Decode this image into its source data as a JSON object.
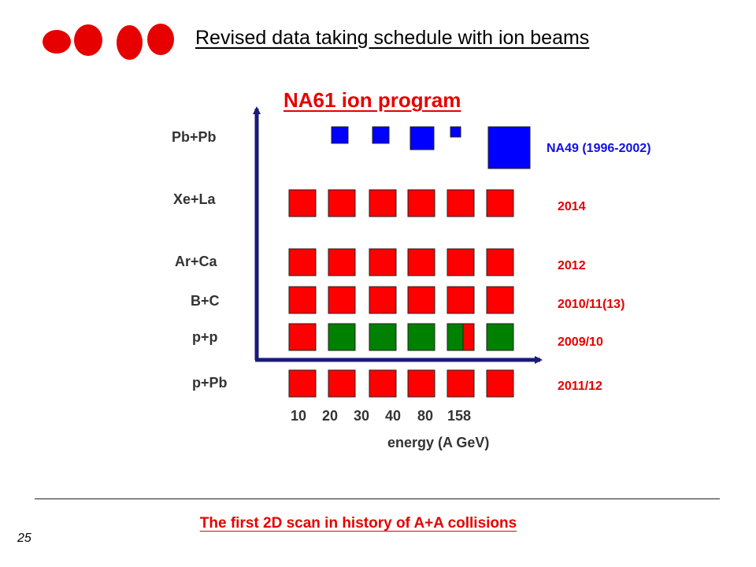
{
  "header": {
    "title": "Revised data taking schedule with ion beams"
  },
  "logo": {
    "name": "red-dots-logo",
    "color": "#e60000"
  },
  "diagram": {
    "title": "NA61 ion program",
    "x_axis": {
      "label": "energy (A GeV)",
      "ticks": [
        "10",
        "20",
        "30",
        "40",
        "80",
        "158"
      ]
    },
    "rows": [
      {
        "label": "Pb+Pb",
        "year": "NA49 (1996-2002)",
        "year_color": "#1010e0"
      },
      {
        "label": "Xe+La",
        "year": "2014",
        "year_color": "#e60000"
      },
      {
        "label": "Ar+Ca",
        "year": "2012",
        "year_color": "#e60000"
      },
      {
        "label": "B+C",
        "year": "2010/11(13)",
        "year_color": "#e60000"
      },
      {
        "label": "p+p",
        "year": "2009/10",
        "year_color": "#e60000"
      },
      {
        "label": "p+Pb",
        "year": "2011/12",
        "year_color": "#e60000"
      }
    ],
    "colors": {
      "red": "#ff0000",
      "green": "#008000",
      "blue": "#0000ff",
      "axis": "#1a1a7a"
    }
  },
  "footer": {
    "text": "The first 2D scan in history of A+A collisions",
    "page_number": "25"
  }
}
